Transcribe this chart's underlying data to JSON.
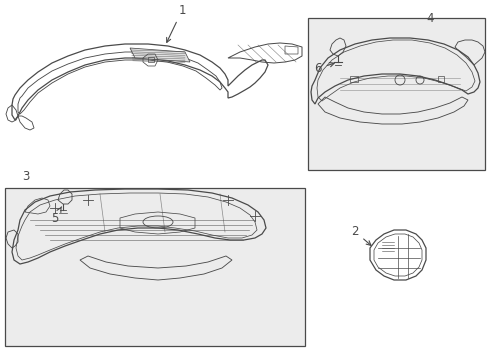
{
  "bg_color": "#ffffff",
  "line_color": "#4a4a4a",
  "box_fill": "#ececec",
  "figsize": [
    4.9,
    3.6
  ],
  "dpi": 100,
  "label_fontsize": 8.5,
  "part1_label": "1",
  "part2_label": "2",
  "part3_label": "3",
  "part4_label": "4",
  "part5_label": "5",
  "part6_label": "6"
}
